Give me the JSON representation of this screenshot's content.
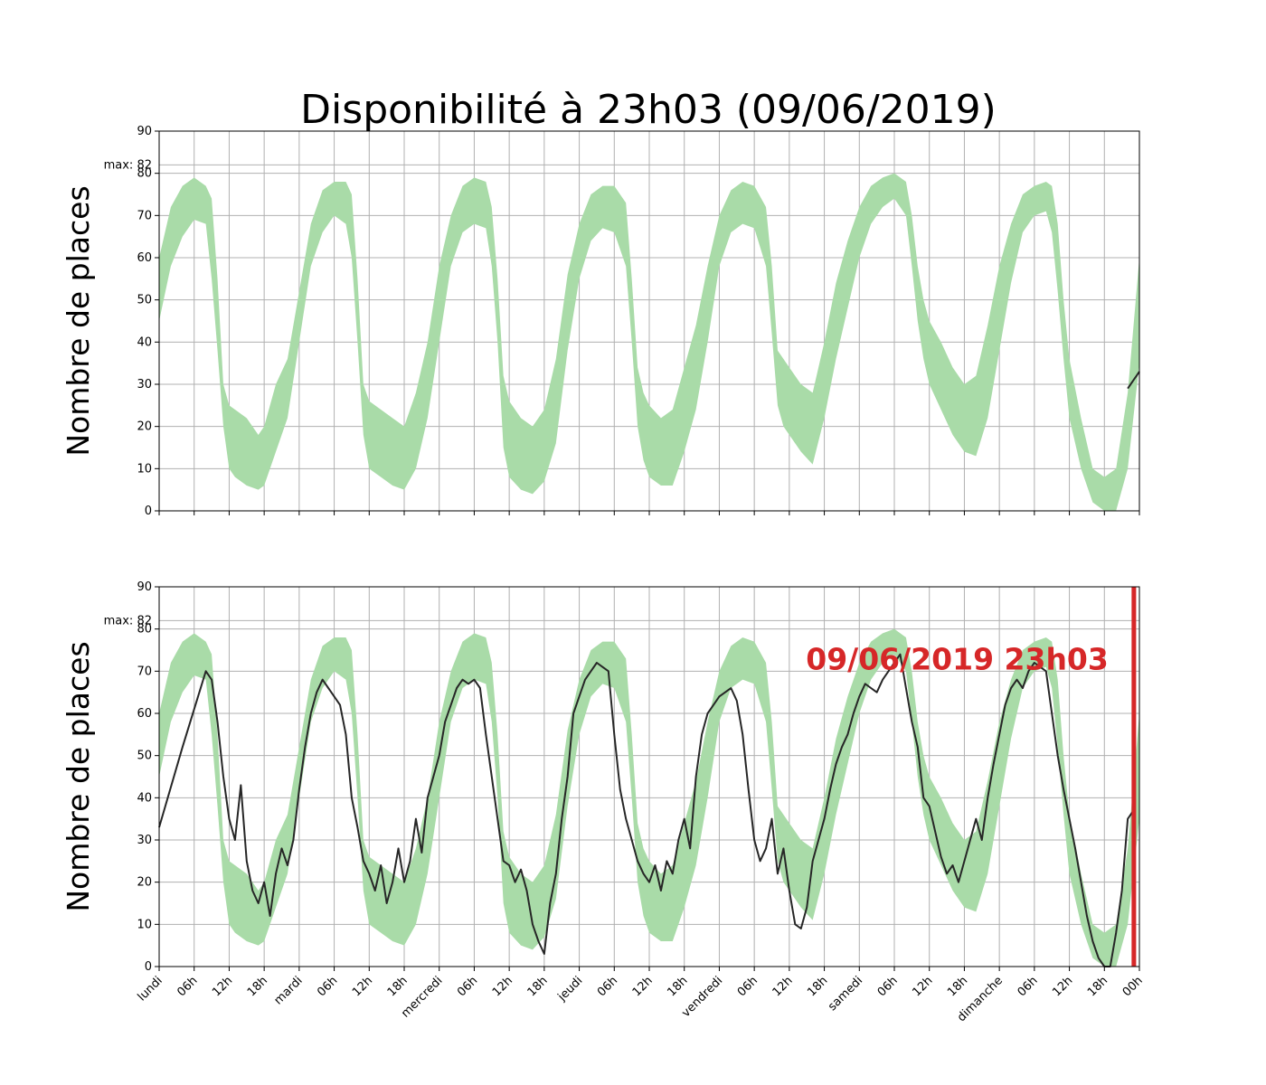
{
  "title": "Disponibilité à 23h03 (09/06/2019)",
  "colors": {
    "band": "#a9dba8",
    "line": "#262626",
    "marker": "#d62728",
    "grid": "#b0b0b0",
    "text": "#000000"
  },
  "chart_data": [
    {
      "type": "area",
      "panel": "top",
      "ylabel": "Nombre de places",
      "ylim": [
        0,
        90
      ],
      "xlim": [
        0,
        168
      ],
      "yticks": [
        0,
        10,
        20,
        30,
        40,
        50,
        60,
        70,
        80,
        90
      ],
      "max_label": "max: 82",
      "max_value": 82,
      "grid": true,
      "x_tick_labels_visible": false,
      "series": [
        {
          "kind": "band",
          "x": [
            0,
            2,
            4,
            6,
            8,
            9,
            10,
            11,
            12,
            13,
            15,
            17,
            18,
            20,
            22,
            24,
            26,
            28,
            30,
            32,
            33,
            34,
            35,
            36,
            38,
            40,
            42,
            44,
            46,
            48,
            50,
            52,
            54,
            56,
            57,
            58,
            59,
            60,
            62,
            64,
            66,
            68,
            70,
            72,
            74,
            76,
            78,
            80,
            81,
            82,
            83,
            84,
            86,
            88,
            90,
            92,
            94,
            96,
            98,
            100,
            102,
            104,
            105,
            106,
            107,
            108,
            110,
            112,
            114,
            116,
            118,
            120,
            122,
            124,
            126,
            128,
            129,
            130,
            131,
            132,
            134,
            136,
            138,
            140,
            142,
            144,
            146,
            148,
            150,
            152,
            153,
            154,
            155,
            156,
            158,
            160,
            162,
            164,
            166,
            168
          ],
          "low": [
            45,
            58,
            65,
            69,
            68,
            55,
            38,
            20,
            10,
            8,
            6,
            5,
            6,
            14,
            22,
            40,
            58,
            66,
            70,
            68,
            60,
            40,
            18,
            10,
            8,
            6,
            5,
            10,
            22,
            40,
            58,
            66,
            68,
            67,
            58,
            40,
            15,
            8,
            5,
            4,
            7,
            16,
            38,
            55,
            64,
            67,
            66,
            58,
            40,
            20,
            12,
            8,
            6,
            6,
            14,
            24,
            40,
            58,
            66,
            68,
            67,
            58,
            42,
            25,
            20,
            18,
            14,
            11,
            22,
            36,
            48,
            60,
            68,
            72,
            74,
            70,
            58,
            45,
            36,
            30,
            24,
            18,
            14,
            13,
            22,
            38,
            54,
            66,
            70,
            71,
            66,
            52,
            36,
            22,
            10,
            2,
            0,
            0,
            10,
            35
          ],
          "high": [
            60,
            72,
            77,
            79,
            77,
            74,
            55,
            30,
            25,
            24,
            22,
            18,
            20,
            30,
            36,
            52,
            68,
            76,
            78,
            78,
            75,
            55,
            30,
            26,
            24,
            22,
            20,
            28,
            40,
            58,
            70,
            77,
            79,
            78,
            72,
            55,
            32,
            26,
            22,
            20,
            24,
            36,
            56,
            68,
            75,
            77,
            77,
            73,
            55,
            34,
            28,
            25,
            22,
            24,
            34,
            44,
            58,
            70,
            76,
            78,
            77,
            72,
            58,
            38,
            36,
            34,
            30,
            28,
            40,
            54,
            64,
            72,
            77,
            79,
            80,
            78,
            70,
            58,
            50,
            45,
            40,
            34,
            30,
            32,
            44,
            58,
            68,
            75,
            77,
            78,
            77,
            68,
            50,
            36,
            22,
            10,
            8,
            10,
            28,
            60
          ]
        },
        {
          "kind": "line",
          "x": [
            166,
            166.5,
            167,
            167.5,
            168
          ],
          "y": [
            29,
            30,
            31,
            32,
            33
          ]
        }
      ]
    },
    {
      "type": "line",
      "panel": "bottom",
      "ylabel": "Nombre de places",
      "ylim": [
        0,
        90
      ],
      "xlim": [
        0,
        168
      ],
      "yticks": [
        0,
        10,
        20,
        30,
        40,
        50,
        60,
        70,
        80,
        90
      ],
      "max_label": "max: 82",
      "max_value": 82,
      "grid": true,
      "x_tick_labels": [
        "lundi",
        "06h",
        "12h",
        "18h",
        "mardi",
        "06h",
        "12h",
        "18h",
        "mercredi",
        "06h",
        "12h",
        "18h",
        "jeudi",
        "06h",
        "12h",
        "18h",
        "vendredi",
        "06h",
        "12h",
        "18h",
        "samedi",
        "06h",
        "12h",
        "18h",
        "dimanche",
        "06h",
        "12h",
        "18h",
        "00h"
      ],
      "x_tick_values": [
        0,
        6,
        12,
        18,
        24,
        30,
        36,
        42,
        48,
        54,
        60,
        66,
        72,
        78,
        84,
        90,
        96,
        102,
        108,
        114,
        120,
        126,
        132,
        138,
        144,
        150,
        156,
        162,
        168
      ],
      "annotation": {
        "text": "09/06/2019 23h03",
        "x": 167.05,
        "y": 73
      },
      "series": [
        {
          "kind": "band",
          "same_as_panel": "top"
        },
        {
          "kind": "line",
          "x": [
            0,
            4,
            8,
            9,
            10,
            11,
            12,
            13,
            14,
            15,
            16,
            17,
            18,
            19,
            20,
            21,
            22,
            23,
            24,
            25,
            26,
            27,
            28,
            29,
            30,
            31,
            32,
            33,
            34,
            35,
            36,
            37,
            38,
            39,
            40,
            41,
            42,
            43,
            44,
            45,
            46,
            47,
            48,
            49,
            50,
            51,
            52,
            53,
            54,
            55,
            56,
            57,
            58,
            59,
            60,
            61,
            62,
            63,
            64,
            65,
            66,
            67,
            68,
            69,
            70,
            71,
            72,
            73,
            74,
            75,
            76,
            77,
            78,
            79,
            80,
            81,
            82,
            83,
            84,
            85,
            86,
            87,
            88,
            89,
            90,
            91,
            92,
            93,
            94,
            95,
            96,
            97,
            98,
            99,
            100,
            101,
            102,
            103,
            104,
            105,
            106,
            107,
            108,
            109,
            110,
            111,
            112,
            113,
            114,
            115,
            116,
            117,
            118,
            119,
            120,
            121,
            122,
            123,
            124,
            125,
            126,
            127,
            128,
            129,
            130,
            131,
            132,
            133,
            134,
            135,
            136,
            137,
            138,
            139,
            140,
            141,
            142,
            143,
            144,
            145,
            146,
            147,
            148,
            149,
            150,
            151,
            152,
            153,
            154,
            155,
            156,
            157,
            158,
            159,
            160,
            161,
            162,
            163,
            164,
            165,
            166,
            167,
            167.05
          ],
          "y": [
            33,
            52,
            70,
            68,
            58,
            45,
            35,
            30,
            43,
            25,
            18,
            15,
            20,
            12,
            22,
            28,
            24,
            30,
            42,
            52,
            60,
            65,
            68,
            66,
            64,
            62,
            55,
            40,
            33,
            25,
            22,
            18,
            24,
            15,
            20,
            28,
            20,
            25,
            35,
            27,
            40,
            45,
            50,
            58,
            62,
            66,
            68,
            67,
            68,
            66,
            55,
            45,
            35,
            25,
            24,
            20,
            23,
            18,
            10,
            6,
            3,
            15,
            22,
            35,
            45,
            60,
            64,
            68,
            70,
            72,
            71,
            70,
            55,
            42,
            35,
            30,
            25,
            22,
            20,
            24,
            18,
            25,
            22,
            30,
            35,
            28,
            45,
            55,
            60,
            62,
            64,
            65,
            66,
            63,
            55,
            42,
            30,
            25,
            28,
            35,
            22,
            28,
            18,
            10,
            9,
            14,
            25,
            30,
            35,
            42,
            48,
            52,
            55,
            60,
            64,
            67,
            66,
            65,
            68,
            70,
            72,
            74,
            66,
            58,
            52,
            40,
            38,
            32,
            26,
            22,
            24,
            20,
            25,
            30,
            35,
            30,
            40,
            48,
            55,
            62,
            66,
            68,
            66,
            70,
            72,
            71,
            70,
            60,
            50,
            42,
            35,
            28,
            20,
            12,
            6,
            2,
            0,
            0,
            8,
            18,
            35,
            37,
            47
          ]
        },
        {
          "kind": "marker",
          "x": 167.05
        }
      ]
    }
  ]
}
